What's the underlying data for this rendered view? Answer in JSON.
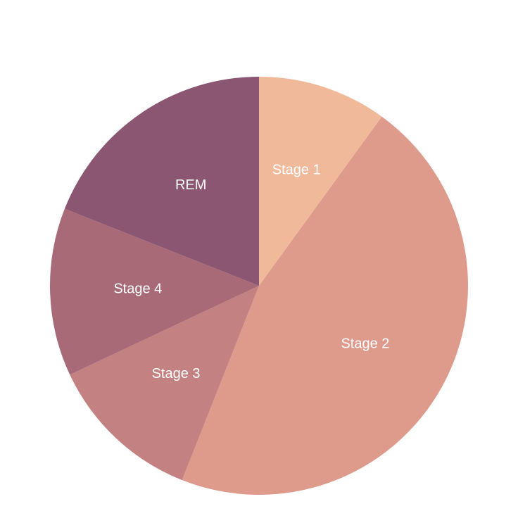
{
  "chart_data": {
    "type": "pie",
    "title": "",
    "direction": "clockwise",
    "start": "12 o'clock",
    "slices": [
      {
        "label": "Stage 1",
        "value": 10,
        "color": "#EFB99A"
      },
      {
        "label": "Stage 2",
        "value": 46,
        "color": "#DE9B8C"
      },
      {
        "label": "Stage 3",
        "value": 12,
        "color": "#C38181"
      },
      {
        "label": "Stage 4",
        "value": 13,
        "color": "#A96A77"
      },
      {
        "label": "REM",
        "value": 19,
        "color": "#8B5671"
      }
    ]
  }
}
